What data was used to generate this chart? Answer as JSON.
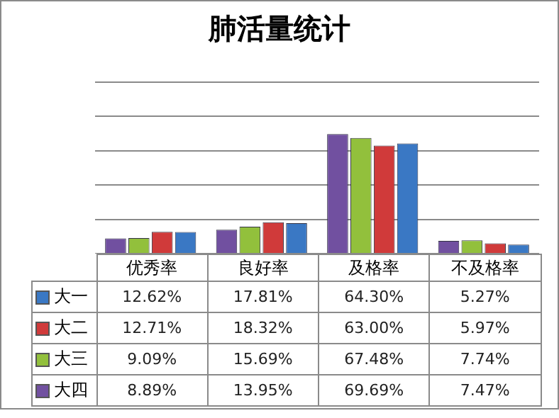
{
  "chart_data": {
    "type": "bar",
    "title": "肺活量统计",
    "categories": [
      "优秀率",
      "良好率",
      "及格率",
      "不及格率"
    ],
    "series": [
      {
        "name": "大一",
        "color": "#3a78c4",
        "values": [
          12.62,
          17.81,
          64.3,
          5.27
        ],
        "value_labels": [
          "12.62%",
          "17.81%",
          "64.30%",
          "5.27%"
        ]
      },
      {
        "name": "大二",
        "color": "#d03a3a",
        "values": [
          12.71,
          18.32,
          63.0,
          5.97
        ],
        "value_labels": [
          "12.71%",
          "18.32%",
          "63.00%",
          "5.97%"
        ]
      },
      {
        "name": "大三",
        "color": "#92c03c",
        "values": [
          9.09,
          15.69,
          67.48,
          7.74
        ],
        "value_labels": [
          "9.09%",
          "15.69%",
          "67.48%",
          "7.74%"
        ]
      },
      {
        "name": "大四",
        "color": "#7150a0",
        "values": [
          8.89,
          13.95,
          69.69,
          7.47
        ],
        "value_labels": [
          "8.89%",
          "13.95%",
          "69.69%",
          "7.47%"
        ]
      }
    ],
    "grid": "y",
    "legend": "bottom",
    "tick_labels": false
  }
}
